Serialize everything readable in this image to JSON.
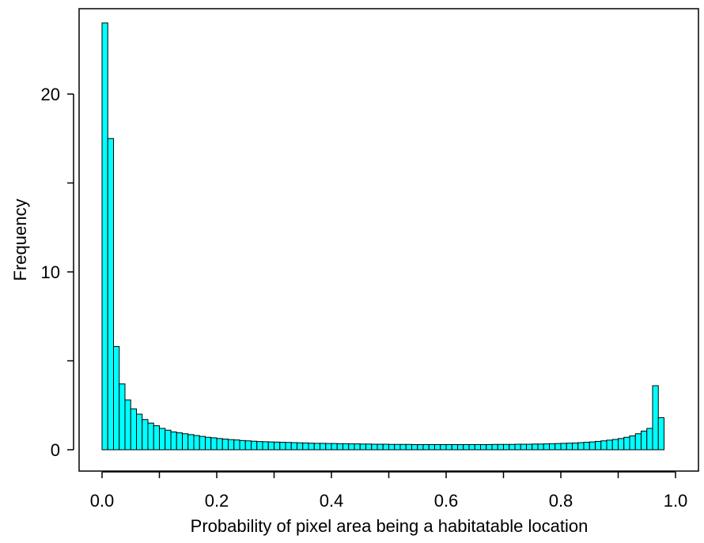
{
  "chart_data": {
    "type": "bar",
    "subtype": "histogram",
    "title": "",
    "xlabel": "Probability of pixel area being a habitatable location",
    "ylabel": "Frequency",
    "xlim": [
      -0.04,
      1.04
    ],
    "ylim": [
      -1.2,
      24.8
    ],
    "xticks": [
      0.0,
      0.1,
      0.2,
      0.3,
      0.4,
      0.5,
      0.6,
      0.7,
      0.8,
      0.9,
      1.0
    ],
    "xtick_labels": [
      "0.0",
      "",
      "0.2",
      "",
      "0.4",
      "",
      "0.6",
      "",
      "0.8",
      "",
      "1.0"
    ],
    "yticks": [
      0,
      5,
      10,
      15,
      20
    ],
    "ytick_labels": [
      "0",
      "",
      "10",
      "",
      "20"
    ],
    "bin_width": 0.01,
    "bin_start": 0.0,
    "bar_color": "#00ffff",
    "edge_color": "#000000",
    "grid": false,
    "legend": "none",
    "values": [
      24.0,
      17.5,
      5.8,
      3.7,
      2.8,
      2.3,
      2.0,
      1.7,
      1.5,
      1.35,
      1.2,
      1.1,
      1.0,
      0.95,
      0.9,
      0.85,
      0.8,
      0.75,
      0.7,
      0.67,
      0.63,
      0.6,
      0.57,
      0.55,
      0.52,
      0.5,
      0.48,
      0.46,
      0.45,
      0.44,
      0.43,
      0.42,
      0.41,
      0.4,
      0.39,
      0.38,
      0.37,
      0.36,
      0.36,
      0.35,
      0.35,
      0.34,
      0.34,
      0.33,
      0.33,
      0.32,
      0.32,
      0.31,
      0.31,
      0.31,
      0.3,
      0.3,
      0.3,
      0.3,
      0.29,
      0.29,
      0.29,
      0.29,
      0.29,
      0.29,
      0.29,
      0.29,
      0.29,
      0.29,
      0.29,
      0.29,
      0.29,
      0.29,
      0.3,
      0.3,
      0.3,
      0.3,
      0.31,
      0.31,
      0.31,
      0.32,
      0.32,
      0.33,
      0.34,
      0.35,
      0.36,
      0.37,
      0.38,
      0.4,
      0.42,
      0.44,
      0.47,
      0.5,
      0.54,
      0.58,
      0.63,
      0.7,
      0.78,
      0.9,
      1.05,
      1.2,
      3.6,
      1.8
    ]
  }
}
